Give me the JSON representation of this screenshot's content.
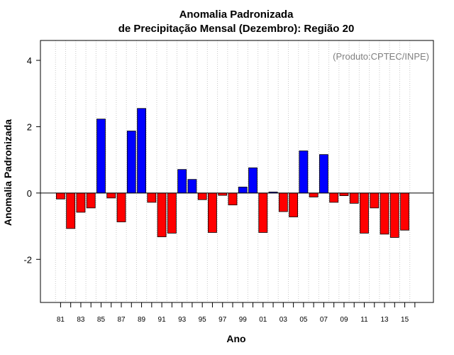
{
  "chart_data": {
    "type": "bar",
    "title": "Anomalia Padronizada",
    "subtitle": "de Precipitação Mensal (Dezembro): Região 20",
    "xlabel": "Ano",
    "ylabel": "Anomalia Padronizada",
    "annotation": "(Produto:CPTEC/INPE)",
    "ylim": [
      -3.3,
      4.6
    ],
    "yticks": [
      -2,
      0,
      2,
      4
    ],
    "grid": "vertical dotted",
    "positive_color": "#0000ff",
    "negative_color": "#ff0000",
    "categories": [
      "81",
      "82",
      "83",
      "84",
      "85",
      "86",
      "87",
      "88",
      "89",
      "90",
      "91",
      "92",
      "93",
      "94",
      "95",
      "96",
      "97",
      "98",
      "99",
      "00",
      "01",
      "02",
      "03",
      "04",
      "05",
      "06",
      "07",
      "08",
      "09",
      "10",
      "11",
      "12",
      "13",
      "14",
      "15"
    ],
    "xtick_labels": [
      "81",
      "83",
      "85",
      "87",
      "89",
      "91",
      "93",
      "95",
      "97",
      "99",
      "01",
      "03",
      "05",
      "07",
      "09",
      "11",
      "13",
      "15"
    ],
    "values": [
      -0.18,
      -1.07,
      -0.58,
      -0.45,
      2.23,
      -0.15,
      -0.87,
      1.87,
      2.55,
      -0.28,
      -1.32,
      -1.21,
      0.71,
      0.41,
      -0.2,
      -1.19,
      -0.07,
      -0.36,
      0.18,
      0.76,
      -1.19,
      0.03,
      -0.56,
      -0.72,
      1.27,
      -0.12,
      1.16,
      -0.28,
      -0.08,
      -0.31,
      -1.21,
      -0.45,
      -1.24,
      -1.34,
      -1.12
    ]
  }
}
